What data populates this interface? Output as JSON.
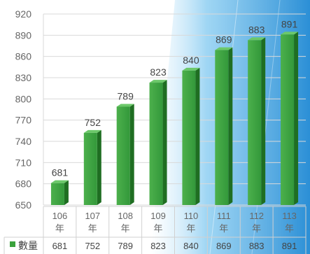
{
  "chart_data": {
    "type": "bar",
    "categories": [
      [
        "106",
        "年"
      ],
      [
        "107",
        "年"
      ],
      [
        "108",
        "年"
      ],
      [
        "109",
        "年"
      ],
      [
        "110",
        "年"
      ],
      [
        "111",
        "年"
      ],
      [
        "112",
        "年"
      ],
      [
        "113",
        "年"
      ]
    ],
    "series": [
      {
        "name": "數量",
        "values": [
          681,
          752,
          789,
          823,
          840,
          869,
          883,
          891
        ]
      }
    ],
    "ylim": [
      650,
      920
    ],
    "yticks": [
      650,
      680,
      710,
      740,
      770,
      800,
      830,
      860,
      890,
      920
    ],
    "grid": true,
    "data_table": true,
    "colors": {
      "bar_front": "#3aa23c",
      "bar_side": "#1f6e22",
      "bar_top": "#6cc86a",
      "legend_key": "#3aa23c",
      "accent_blue": "#2b8fd6"
    }
  }
}
